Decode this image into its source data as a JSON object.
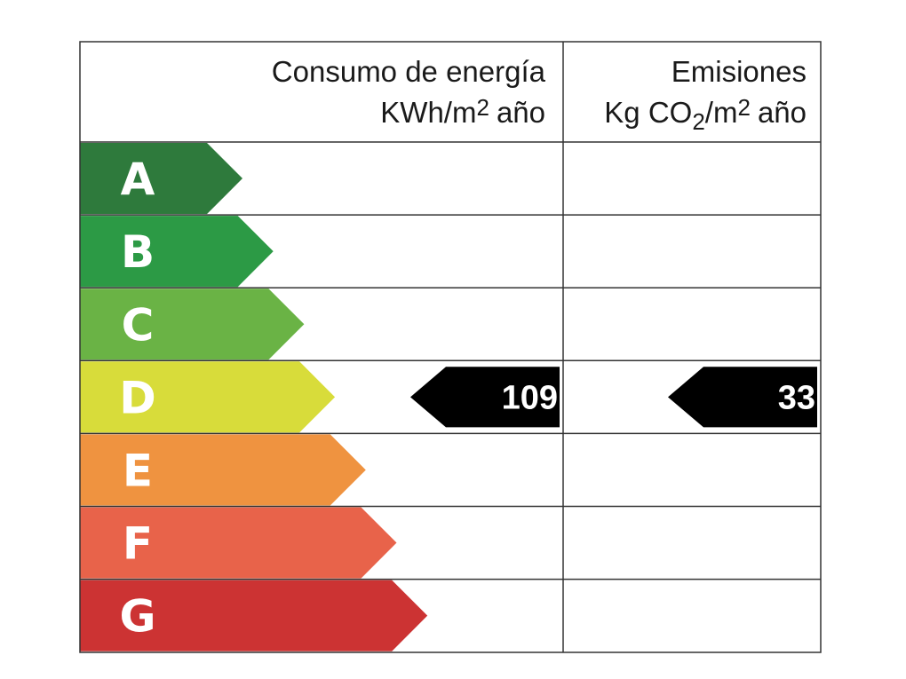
{
  "header": {
    "consumption": {
      "title": "Consumo de energía",
      "unit": [
        "KWh/m",
        "2",
        "año"
      ]
    },
    "emissions": {
      "title": "Emisiones",
      "unit": [
        "Kg CO",
        "2",
        "/m",
        "2",
        "año"
      ]
    }
  },
  "ratings": [
    {
      "letter": "A",
      "color": "#2e7a3c"
    },
    {
      "letter": "B",
      "color": "#2c9a45"
    },
    {
      "letter": "C",
      "color": "#6ab345"
    },
    {
      "letter": "D",
      "color": "#d8dc3a",
      "consumption": 109,
      "emissions": 33
    },
    {
      "letter": "E",
      "color": "#ef9340"
    },
    {
      "letter": "F",
      "color": "#e8634a"
    },
    {
      "letter": "G",
      "color": "#cc3333"
    }
  ]
}
